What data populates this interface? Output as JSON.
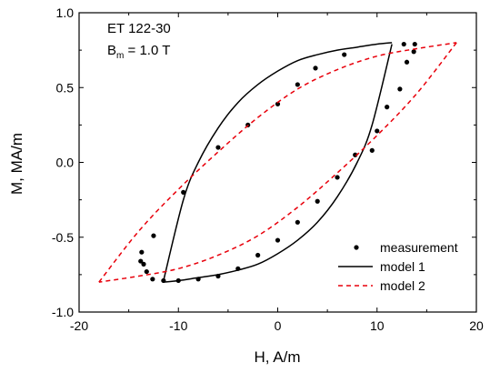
{
  "chart_data": {
    "type": "line",
    "xlabel": "H, A/m",
    "ylabel": "M, MA/m",
    "xlim": [
      -20,
      20
    ],
    "ylim": [
      -1.0,
      1.0
    ],
    "xticks": [
      -20,
      -10,
      0,
      10,
      20
    ],
    "yticks": [
      -1.0,
      -0.5,
      0.0,
      0.5,
      1.0
    ],
    "xtick_labels": [
      "-20",
      "-10",
      "0",
      "10",
      "20"
    ],
    "ytick_labels": [
      "-1.0",
      "-0.5",
      "0.0",
      "0.5",
      "1.0"
    ],
    "annotation": {
      "line1": "ET 122-30",
      "line2_symbol": "B",
      "line2_sub": "m",
      "line2_rest": " = 1.0 T"
    },
    "legend_position": "bottom-right",
    "series": [
      {
        "name": "measurement",
        "style": "markers",
        "color": "#000000",
        "x": [
          12.7,
          13.8,
          13.7,
          13.0,
          12.3,
          11.0,
          10.0,
          9.5,
          7.8,
          6.0,
          4.0,
          2.0,
          0.0,
          -2.0,
          -4.0,
          -6.0,
          -8.0,
          -10.0,
          -11.5,
          -12.6,
          -13.2,
          -13.5,
          -13.8,
          -13.7,
          -12.5,
          -9.5,
          -6.0,
          -3.0,
          0.0,
          2.0,
          3.8,
          6.7
        ],
        "y": [
          0.79,
          0.79,
          0.74,
          0.67,
          0.49,
          0.37,
          0.21,
          0.08,
          0.05,
          -0.1,
          -0.26,
          -0.4,
          -0.52,
          -0.62,
          -0.71,
          -0.76,
          -0.78,
          -0.79,
          -0.79,
          -0.78,
          -0.73,
          -0.68,
          -0.66,
          -0.6,
          -0.49,
          -0.2,
          0.1,
          0.25,
          0.39,
          0.52,
          0.63,
          0.72
        ],
        "x_order_note": ""
      },
      {
        "name": "model 1",
        "style": "solid",
        "color": "#000000",
        "upper_x": [
          -11.5,
          -9.5,
          -8.0,
          -6.0,
          -4.0,
          -2.0,
          0.0,
          2.0,
          4.0,
          6.0,
          8.0,
          10.0,
          11.5
        ],
        "upper_y": [
          -0.79,
          -0.25,
          0.0,
          0.23,
          0.4,
          0.52,
          0.61,
          0.68,
          0.72,
          0.75,
          0.77,
          0.79,
          0.8
        ],
        "lower_x": [
          11.5,
          9.5,
          8.0,
          6.0,
          4.0,
          2.0,
          0.0,
          -2.0,
          -4.0,
          -6.0,
          -8.0,
          -10.0,
          -11.5
        ],
        "lower_y": [
          0.79,
          0.25,
          0.0,
          -0.23,
          -0.4,
          -0.52,
          -0.61,
          -0.68,
          -0.72,
          -0.75,
          -0.77,
          -0.79,
          -0.8
        ]
      },
      {
        "name": "model 2",
        "style": "dashed",
        "color": "#e8000b",
        "upper_x": [
          -18.0,
          -14.0,
          -10.0,
          -6.0,
          -2.0,
          2.0,
          6.0,
          10.0,
          14.0,
          18.0
        ],
        "upper_y": [
          -0.8,
          -0.46,
          -0.18,
          0.07,
          0.3,
          0.49,
          0.62,
          0.71,
          0.76,
          0.8
        ],
        "lower_x": [
          18.0,
          14.0,
          10.0,
          6.0,
          2.0,
          -2.0,
          -6.0,
          -10.0,
          -14.0,
          -18.0
        ],
        "lower_y": [
          0.8,
          0.46,
          0.18,
          -0.07,
          -0.3,
          -0.49,
          -0.62,
          -0.71,
          -0.76,
          -0.8
        ]
      }
    ]
  }
}
